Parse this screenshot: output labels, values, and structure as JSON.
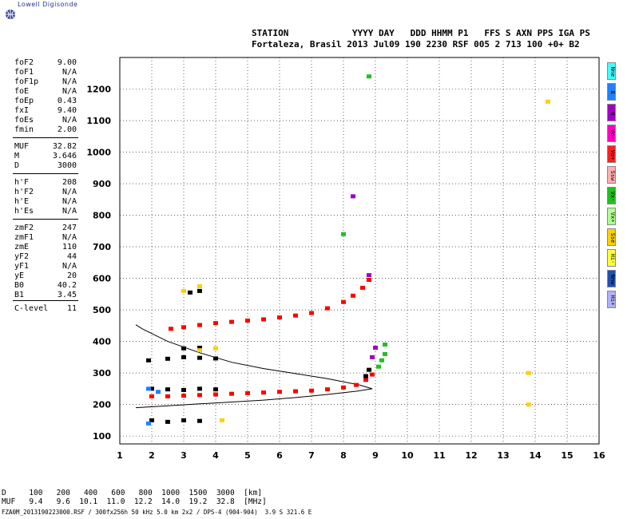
{
  "logo": {
    "title": "Lowell Digisonde"
  },
  "header": {
    "line1": "STATION            YYYY DAY   DDD HHMM P1   FFS S AXN PPS IGA PS",
    "line2": "Fortaleza, Brasil 2013 Jul09 190 2230 RSF 005 2 713 100 +0+ B2"
  },
  "params": [
    {
      "k": "foF2",
      "v": "9.00"
    },
    {
      "k": "foF1",
      "v": "N/A"
    },
    {
      "k": "foF1p",
      "v": "N/A"
    },
    {
      "k": "foE",
      "v": "N/A"
    },
    {
      "k": "foEp",
      "v": "0.43"
    },
    {
      "k": "fxI",
      "v": "9.40"
    },
    {
      "k": "foEs",
      "v": "N/A"
    },
    {
      "k": "fmin",
      "v": "2.00"
    },
    {
      "k": "MUF",
      "v": "32.82"
    },
    {
      "k": "M",
      "v": "3.646"
    },
    {
      "k": "D",
      "v": "3000"
    },
    {
      "k": "h'F",
      "v": "208"
    },
    {
      "k": "h'F2",
      "v": "N/A"
    },
    {
      "k": "h'E",
      "v": "N/A"
    },
    {
      "k": "h'Es",
      "v": "N/A"
    },
    {
      "k": "zmF2",
      "v": "247"
    },
    {
      "k": "zmF1",
      "v": "N/A"
    },
    {
      "k": "zmE",
      "v": "110"
    },
    {
      "k": "yF2",
      "v": "44"
    },
    {
      "k": "yF1",
      "v": "N/A"
    },
    {
      "k": "yE",
      "v": "20"
    },
    {
      "k": "B0",
      "v": "40.2"
    },
    {
      "k": "B1",
      "v": "3.45"
    },
    {
      "k": "C-level",
      "v": "11"
    }
  ],
  "legend": [
    {
      "label": "Nne",
      "color": "#40ffff"
    },
    {
      "label": "E",
      "color": "#2080ff"
    },
    {
      "label": "W",
      "color": "#a000c0"
    },
    {
      "label": "Vo-",
      "color": "#ff00c0"
    },
    {
      "label": "Vo+",
      "color": "#ff2020"
    },
    {
      "label": "Ssw",
      "color": "#ffb0b0"
    },
    {
      "label": "Vx-",
      "color": "#20c020"
    },
    {
      "label": "Vx+",
      "color": "#b0ff90"
    },
    {
      "label": "Sse",
      "color": "#ffd000"
    },
    {
      "label": "Hi-",
      "color": "#ffff40"
    },
    {
      "label": "Nnw",
      "color": "#2050b0"
    },
    {
      "label": "Hi+",
      "color": "#b0b0ff"
    }
  ],
  "footer": {
    "row1": "D     100   200   400   600   800  1000  1500  3000  [km]",
    "row2": "MUF   9.4   9.6  10.1  11.0  12.2  14.0  19.2  32.8  [MHz]",
    "filename": "FZA0M_2013190223000.RSF / 300fx256h 50 kHz 5.0 km 2x2 / DPS-4 (904-904)  3.9 S 321.6 E"
  },
  "chart_data": {
    "type": "scatter",
    "xlim": [
      1,
      16
    ],
    "ylim": [
      75,
      1300
    ],
    "xticks": [
      1,
      2,
      3,
      4,
      5,
      6,
      7,
      8,
      9,
      10,
      11,
      12,
      13,
      14,
      15,
      16
    ],
    "yticks": [
      100,
      200,
      300,
      400,
      500,
      600,
      700,
      800,
      900,
      1000,
      1100,
      1200
    ],
    "grid": true,
    "profile": [
      [
        1.5,
        190
      ],
      [
        2.5,
        196
      ],
      [
        3.5,
        202
      ],
      [
        4.5,
        208
      ],
      [
        5.5,
        214
      ],
      [
        6.5,
        222
      ],
      [
        7.5,
        232
      ],
      [
        8.4,
        242
      ],
      [
        8.9,
        250
      ],
      [
        8.5,
        262
      ],
      [
        7.5,
        282
      ],
      [
        6.5,
        298
      ],
      [
        5.5,
        314
      ],
      [
        4.5,
        334
      ],
      [
        3.5,
        364
      ],
      [
        2.5,
        400
      ],
      [
        2.0,
        425
      ],
      [
        1.7,
        440
      ],
      [
        1.5,
        453
      ]
    ],
    "series": [
      {
        "color": "#ff0000",
        "points": [
          [
            2.0,
            226
          ],
          [
            2.5,
            226
          ],
          [
            3.0,
            228
          ],
          [
            3.5,
            230
          ],
          [
            4.0,
            232
          ],
          [
            4.5,
            234
          ],
          [
            5.0,
            236
          ],
          [
            5.5,
            238
          ],
          [
            6.0,
            240
          ],
          [
            6.5,
            242
          ],
          [
            7.0,
            244
          ],
          [
            7.5,
            248
          ],
          [
            8.0,
            254
          ],
          [
            8.4,
            262
          ],
          [
            8.7,
            278
          ],
          [
            8.9,
            295
          ]
        ]
      },
      {
        "color": "#ff0000",
        "points": [
          [
            2.6,
            440
          ],
          [
            3.0,
            445
          ],
          [
            3.5,
            452
          ],
          [
            4.0,
            458
          ],
          [
            4.5,
            462
          ],
          [
            5.0,
            466
          ],
          [
            5.5,
            470
          ],
          [
            6.0,
            476
          ],
          [
            6.5,
            482
          ],
          [
            7.0,
            490
          ],
          [
            7.5,
            505
          ],
          [
            8.0,
            525
          ],
          [
            8.3,
            545
          ],
          [
            8.6,
            570
          ],
          [
            8.8,
            595
          ]
        ]
      },
      {
        "color": "#000000",
        "points": [
          [
            2.0,
            250
          ],
          [
            2.5,
            248
          ],
          [
            3.0,
            246
          ],
          [
            3.5,
            250
          ],
          [
            4.0,
            248
          ],
          [
            1.9,
            340
          ],
          [
            2.5,
            345
          ],
          [
            3.0,
            350
          ],
          [
            3.5,
            348
          ],
          [
            4.0,
            346
          ],
          [
            3.0,
            378
          ],
          [
            3.5,
            380
          ],
          [
            3.2,
            555
          ],
          [
            3.5,
            560
          ],
          [
            2.0,
            150
          ],
          [
            2.5,
            145
          ],
          [
            3.0,
            150
          ],
          [
            3.5,
            148
          ],
          [
            8.7,
            290
          ],
          [
            8.8,
            310
          ]
        ]
      },
      {
        "color": "#20c020",
        "points": [
          [
            9.1,
            320
          ],
          [
            9.2,
            340
          ],
          [
            9.3,
            360
          ],
          [
            9.3,
            390
          ],
          [
            8.0,
            740
          ],
          [
            8.8,
            1240
          ]
        ]
      },
      {
        "color": "#a000c0",
        "points": [
          [
            8.9,
            350
          ],
          [
            9.0,
            380
          ],
          [
            8.3,
            860
          ],
          [
            8.8,
            610
          ]
        ]
      },
      {
        "color": "#ffd000",
        "points": [
          [
            3.0,
            560
          ],
          [
            3.5,
            575
          ],
          [
            3.5,
            372
          ],
          [
            4.0,
            378
          ],
          [
            4.2,
            150
          ],
          [
            13.8,
            300
          ],
          [
            13.8,
            200
          ],
          [
            14.4,
            1160
          ]
        ]
      },
      {
        "color": "#2080ff",
        "points": [
          [
            1.9,
            250
          ],
          [
            2.2,
            240
          ],
          [
            1.9,
            140
          ]
        ]
      }
    ]
  }
}
